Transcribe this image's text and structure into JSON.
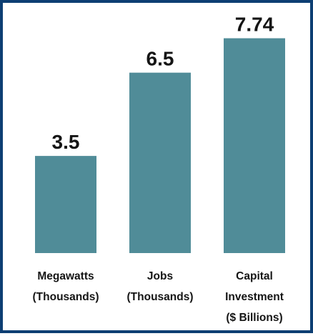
{
  "chart_data": {
    "type": "bar",
    "title": "",
    "xlabel": "",
    "ylabel": "",
    "categories": [
      [
        "Megawatts",
        "(Thousands)"
      ],
      [
        "Jobs",
        "(Thousands)"
      ],
      [
        "Capital",
        "Investment",
        "($ Billions)"
      ]
    ],
    "values": [
      3.5,
      6.5,
      7.74
    ],
    "value_labels": [
      "3.5",
      "6.5",
      "7.74"
    ],
    "ylim": [
      0,
      8.5
    ],
    "grid": false,
    "legend": "none",
    "colors": {
      "bar": "#508c98",
      "frame": "#0d3f73",
      "text": "#151515"
    }
  }
}
